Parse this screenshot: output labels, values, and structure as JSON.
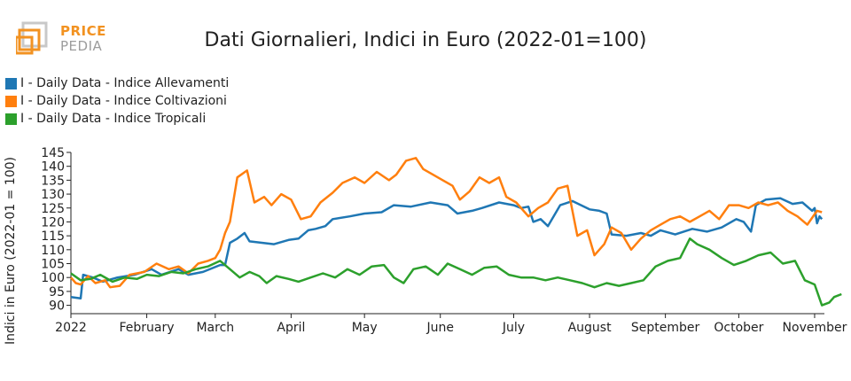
{
  "logo": {
    "line1": "PRICE",
    "line2": "PEDIA"
  },
  "chart_data": {
    "type": "line",
    "title": "Dati Giornalieri, Indici in Euro (2022-01=100)",
    "xlabel": "",
    "ylabel": "Indici in Euro (2022-01 = 100)",
    "ylim": [
      87,
      145
    ],
    "yticks": [
      90,
      95,
      100,
      105,
      110,
      115,
      120,
      125,
      130,
      135,
      140,
      145
    ],
    "xlim": [
      "2022-01-01",
      "2022-11-05"
    ],
    "xticks": [
      {
        "date": "2022-01-01",
        "label": "2022"
      },
      {
        "date": "2022-02-01",
        "label": "February"
      },
      {
        "date": "2022-03-01",
        "label": "March"
      },
      {
        "date": "2022-04-01",
        "label": "April"
      },
      {
        "date": "2022-05-01",
        "label": "May"
      },
      {
        "date": "2022-06-01",
        "label": "June"
      },
      {
        "date": "2022-07-01",
        "label": "July"
      },
      {
        "date": "2022-08-01",
        "label": "August"
      },
      {
        "date": "2022-09-01",
        "label": "September"
      },
      {
        "date": "2022-10-01",
        "label": "October"
      },
      {
        "date": "2022-11-01",
        "label": "November"
      }
    ],
    "grid": false,
    "legend": "top-left",
    "series": [
      {
        "name": "I - Daily Data - Indice Allevamenti",
        "color": "#1f77b4",
        "points": [
          [
            "2022-01-01",
            93
          ],
          [
            "2022-01-05",
            92.5
          ],
          [
            "2022-01-06",
            101
          ],
          [
            "2022-01-10",
            100
          ],
          [
            "2022-01-14",
            98.5
          ],
          [
            "2022-01-20",
            100
          ],
          [
            "2022-01-27",
            101
          ],
          [
            "2022-02-03",
            103
          ],
          [
            "2022-02-07",
            101
          ],
          [
            "2022-02-14",
            103
          ],
          [
            "2022-02-18",
            101
          ],
          [
            "2022-02-24",
            102
          ],
          [
            "2022-03-03",
            104.5
          ],
          [
            "2022-03-05",
            104.5
          ],
          [
            "2022-03-07",
            112.5
          ],
          [
            "2022-03-10",
            114
          ],
          [
            "2022-03-13",
            116
          ],
          [
            "2022-03-15",
            113
          ],
          [
            "2022-03-20",
            112.5
          ],
          [
            "2022-03-25",
            112
          ],
          [
            "2022-03-31",
            113.5
          ],
          [
            "2022-04-04",
            114
          ],
          [
            "2022-04-08",
            117
          ],
          [
            "2022-04-11",
            117.5
          ],
          [
            "2022-04-15",
            118.5
          ],
          [
            "2022-04-18",
            121
          ],
          [
            "2022-04-25",
            122
          ],
          [
            "2022-05-01",
            123
          ],
          [
            "2022-05-08",
            123.5
          ],
          [
            "2022-05-13",
            126
          ],
          [
            "2022-05-20",
            125.5
          ],
          [
            "2022-05-28",
            127
          ],
          [
            "2022-06-04",
            126
          ],
          [
            "2022-06-08",
            123
          ],
          [
            "2022-06-14",
            124
          ],
          [
            "2022-06-18",
            125
          ],
          [
            "2022-06-25",
            127
          ],
          [
            "2022-07-01",
            126
          ],
          [
            "2022-07-04",
            125
          ],
          [
            "2022-07-07",
            125.5
          ],
          [
            "2022-07-09",
            120
          ],
          [
            "2022-07-12",
            121
          ],
          [
            "2022-07-15",
            118.5
          ],
          [
            "2022-07-20",
            126
          ],
          [
            "2022-07-25",
            127.5
          ],
          [
            "2022-08-01",
            124.5
          ],
          [
            "2022-08-05",
            124
          ],
          [
            "2022-08-08",
            123
          ],
          [
            "2022-08-10",
            115.5
          ],
          [
            "2022-08-16",
            115
          ],
          [
            "2022-08-22",
            116
          ],
          [
            "2022-08-26",
            115
          ],
          [
            "2022-08-30",
            117
          ],
          [
            "2022-09-05",
            115.5
          ],
          [
            "2022-09-12",
            117.5
          ],
          [
            "2022-09-18",
            116.5
          ],
          [
            "2022-09-24",
            118
          ],
          [
            "2022-09-30",
            121
          ],
          [
            "2022-10-03",
            120
          ],
          [
            "2022-10-06",
            116.5
          ],
          [
            "2022-10-08",
            126
          ],
          [
            "2022-10-12",
            128
          ],
          [
            "2022-10-18",
            128.5
          ],
          [
            "2022-10-23",
            126.5
          ],
          [
            "2022-10-27",
            127
          ],
          [
            "2022-10-31",
            124
          ],
          [
            "2022-11-01",
            125
          ],
          [
            "2022-11-02",
            119.5
          ],
          [
            "2022-11-03",
            122
          ],
          [
            "2022-11-04",
            121
          ]
        ]
      },
      {
        "name": "I - Daily Data - Indice Coltivazioni",
        "color": "#ff7f0e",
        "points": [
          [
            "2022-01-01",
            100
          ],
          [
            "2022-01-03",
            98
          ],
          [
            "2022-01-05",
            97.5
          ],
          [
            "2022-01-08",
            100.5
          ],
          [
            "2022-01-11",
            98
          ],
          [
            "2022-01-15",
            99
          ],
          [
            "2022-01-17",
            96.5
          ],
          [
            "2022-01-21",
            97
          ],
          [
            "2022-01-25",
            101
          ],
          [
            "2022-01-31",
            102
          ],
          [
            "2022-02-05",
            105
          ],
          [
            "2022-02-10",
            103
          ],
          [
            "2022-02-14",
            104
          ],
          [
            "2022-02-18",
            101.5
          ],
          [
            "2022-02-22",
            105
          ],
          [
            "2022-02-26",
            106
          ],
          [
            "2022-03-01",
            107
          ],
          [
            "2022-03-03",
            110
          ],
          [
            "2022-03-05",
            116
          ],
          [
            "2022-03-07",
            120
          ],
          [
            "2022-03-10",
            136
          ],
          [
            "2022-03-14",
            138.5
          ],
          [
            "2022-03-17",
            127
          ],
          [
            "2022-03-21",
            129
          ],
          [
            "2022-03-24",
            126
          ],
          [
            "2022-03-28",
            130
          ],
          [
            "2022-04-01",
            128
          ],
          [
            "2022-04-05",
            121
          ],
          [
            "2022-04-09",
            122
          ],
          [
            "2022-04-13",
            127
          ],
          [
            "2022-04-18",
            130.5
          ],
          [
            "2022-04-22",
            134
          ],
          [
            "2022-04-27",
            136
          ],
          [
            "2022-05-01",
            134
          ],
          [
            "2022-05-06",
            138
          ],
          [
            "2022-05-11",
            135
          ],
          [
            "2022-05-14",
            137
          ],
          [
            "2022-05-18",
            142
          ],
          [
            "2022-05-22",
            143
          ],
          [
            "2022-05-25",
            139
          ],
          [
            "2022-05-29",
            137
          ],
          [
            "2022-06-02",
            135
          ],
          [
            "2022-06-06",
            133
          ],
          [
            "2022-06-09",
            128
          ],
          [
            "2022-06-13",
            131
          ],
          [
            "2022-06-17",
            136
          ],
          [
            "2022-06-21",
            134
          ],
          [
            "2022-06-25",
            136
          ],
          [
            "2022-06-28",
            129
          ],
          [
            "2022-07-02",
            127
          ],
          [
            "2022-07-07",
            122
          ],
          [
            "2022-07-11",
            125
          ],
          [
            "2022-07-15",
            127
          ],
          [
            "2022-07-19",
            132
          ],
          [
            "2022-07-23",
            133
          ],
          [
            "2022-07-27",
            115
          ],
          [
            "2022-07-31",
            117
          ],
          [
            "2022-08-03",
            108
          ],
          [
            "2022-08-07",
            112
          ],
          [
            "2022-08-10",
            118
          ],
          [
            "2022-08-14",
            116
          ],
          [
            "2022-08-18",
            110
          ],
          [
            "2022-08-22",
            114
          ],
          [
            "2022-08-26",
            117
          ],
          [
            "2022-08-30",
            119
          ],
          [
            "2022-09-03",
            121
          ],
          [
            "2022-09-07",
            122
          ],
          [
            "2022-09-11",
            120
          ],
          [
            "2022-09-15",
            122
          ],
          [
            "2022-09-19",
            124
          ],
          [
            "2022-09-23",
            121
          ],
          [
            "2022-09-27",
            126
          ],
          [
            "2022-10-01",
            126
          ],
          [
            "2022-10-05",
            125
          ],
          [
            "2022-10-09",
            127
          ],
          [
            "2022-10-13",
            126
          ],
          [
            "2022-10-17",
            127
          ],
          [
            "2022-10-21",
            124
          ],
          [
            "2022-10-25",
            122
          ],
          [
            "2022-10-29",
            119
          ],
          [
            "2022-11-02",
            124
          ],
          [
            "2022-11-04",
            123.5
          ]
        ]
      },
      {
        "name": "I - Daily Data - Indice Tropicali",
        "color": "#2ca02c",
        "points": [
          [
            "2022-01-01",
            101.5
          ],
          [
            "2022-01-05",
            99
          ],
          [
            "2022-01-09",
            99.5
          ],
          [
            "2022-01-13",
            101
          ],
          [
            "2022-01-18",
            98.5
          ],
          [
            "2022-01-23",
            100
          ],
          [
            "2022-01-28",
            99.5
          ],
          [
            "2022-02-01",
            101
          ],
          [
            "2022-02-06",
            100.5
          ],
          [
            "2022-02-11",
            102
          ],
          [
            "2022-02-16",
            101.5
          ],
          [
            "2022-02-21",
            103
          ],
          [
            "2022-02-26",
            104
          ],
          [
            "2022-03-03",
            106
          ],
          [
            "2022-03-07",
            103
          ],
          [
            "2022-03-11",
            100
          ],
          [
            "2022-03-15",
            102
          ],
          [
            "2022-03-19",
            100.5
          ],
          [
            "2022-03-22",
            98
          ],
          [
            "2022-03-26",
            100.5
          ],
          [
            "2022-03-31",
            99.5
          ],
          [
            "2022-04-04",
            98.5
          ],
          [
            "2022-04-09",
            100
          ],
          [
            "2022-04-14",
            101.5
          ],
          [
            "2022-04-19",
            100
          ],
          [
            "2022-04-24",
            103
          ],
          [
            "2022-04-29",
            101
          ],
          [
            "2022-05-04",
            104
          ],
          [
            "2022-05-09",
            104.5
          ],
          [
            "2022-05-13",
            100
          ],
          [
            "2022-05-17",
            98
          ],
          [
            "2022-05-21",
            103
          ],
          [
            "2022-05-26",
            104
          ],
          [
            "2022-05-31",
            101
          ],
          [
            "2022-06-04",
            105
          ],
          [
            "2022-06-09",
            103
          ],
          [
            "2022-06-14",
            101
          ],
          [
            "2022-06-19",
            103.5
          ],
          [
            "2022-06-24",
            104
          ],
          [
            "2022-06-29",
            101
          ],
          [
            "2022-07-04",
            100
          ],
          [
            "2022-07-09",
            100
          ],
          [
            "2022-07-14",
            99
          ],
          [
            "2022-07-19",
            100
          ],
          [
            "2022-07-24",
            99
          ],
          [
            "2022-07-29",
            98
          ],
          [
            "2022-08-03",
            96.5
          ],
          [
            "2022-08-08",
            98
          ],
          [
            "2022-08-13",
            97
          ],
          [
            "2022-08-18",
            98
          ],
          [
            "2022-08-23",
            99
          ],
          [
            "2022-08-28",
            104
          ],
          [
            "2022-09-02",
            106
          ],
          [
            "2022-09-07",
            107
          ],
          [
            "2022-09-11",
            114
          ],
          [
            "2022-09-14",
            112
          ],
          [
            "2022-09-19",
            110
          ],
          [
            "2022-09-24",
            107
          ],
          [
            "2022-09-29",
            104.5
          ],
          [
            "2022-10-04",
            106
          ],
          [
            "2022-10-09",
            108
          ],
          [
            "2022-10-14",
            109
          ],
          [
            "2022-10-19",
            105
          ],
          [
            "2022-10-24",
            106
          ],
          [
            "2022-10-28",
            99
          ],
          [
            "2022-11-01",
            97.5
          ],
          [
            "2022-11-04",
            90
          ],
          [
            "2022-11-07",
            91
          ],
          [
            "2022-11-09",
            93
          ],
          [
            "2022-11-12",
            94
          ]
        ]
      }
    ]
  }
}
